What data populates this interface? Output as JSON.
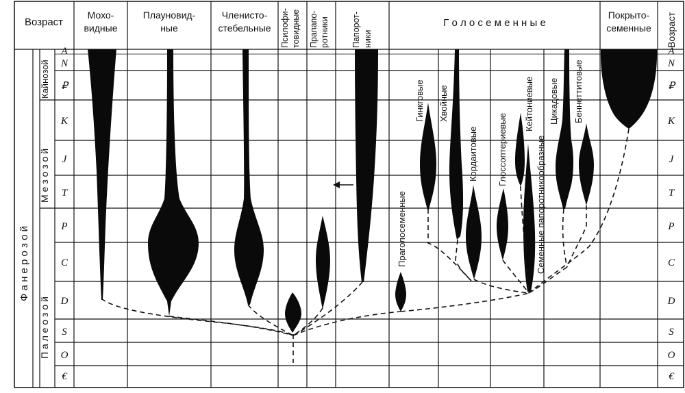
{
  "header": {
    "age": "Возраст",
    "age_right": "Возраст"
  },
  "eon": "Ф а н е р о з о й",
  "eras": {
    "cenozoic": "Кайнозой",
    "mesozoic": "М е з о з о й",
    "paleozoic": "П а л е о з о й"
  },
  "periods": [
    "A",
    "N",
    "₽",
    "K",
    "J",
    "T",
    "P",
    "C",
    "D",
    "S",
    "O",
    "€"
  ],
  "columns": [
    {
      "id": "mosses",
      "lines": [
        "Мохо-",
        "видные"
      ]
    },
    {
      "id": "lycopods",
      "lines": [
        "Плауновид-",
        "ные"
      ]
    },
    {
      "id": "horsetails",
      "lines": [
        "Членисто-",
        "стебельные"
      ]
    },
    {
      "id": "psilophytes",
      "lines": [
        "Псилофи-",
        "товидные"
      ]
    },
    {
      "id": "proferns",
      "lines": [
        "Прапапо-",
        "ротники"
      ]
    },
    {
      "id": "ferns",
      "lines": [
        "Папорот-",
        "ники"
      ]
    },
    {
      "id": "gymnosperms",
      "lines": [
        "Г о л о с е м е н н ы е"
      ]
    },
    {
      "id": "angiosperms",
      "lines": [
        "Покрыто-",
        "семенные"
      ]
    }
  ],
  "gymno_labels": {
    "progymnosperms": "Праголосеменные",
    "ginkgo": "Гинкговые",
    "conifers": "Хвойные",
    "cordaites": "Кордаитовые",
    "glossopterids": "Глоссоптериевые",
    "caytonia": "Кейтониевые",
    "seed_ferns": "Семенные папоротникообразные",
    "cycads": "Цикадовые",
    "bennettites": "Беннеттитовые"
  }
}
